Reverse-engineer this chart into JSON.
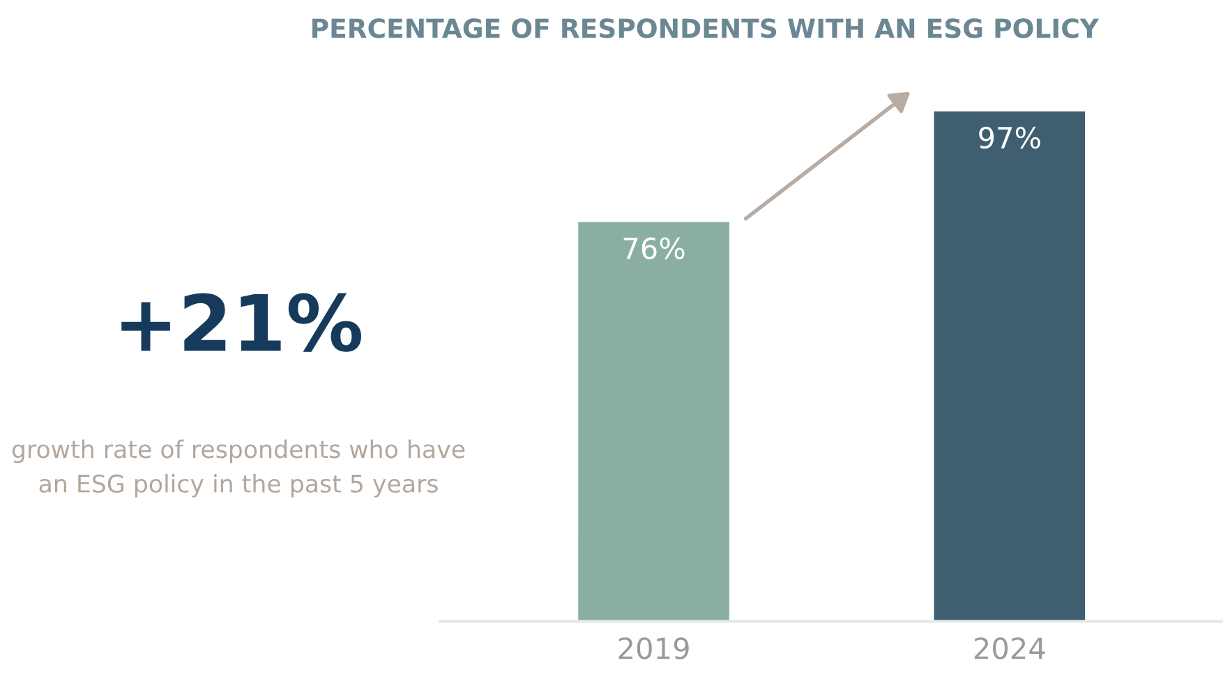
{
  "chart_data": {
    "type": "bar",
    "title": "PERCENTAGE OF RESPONDENTS WITH AN ESG POLICY",
    "categories": [
      "2019",
      "2024"
    ],
    "values": [
      76,
      97
    ],
    "colors": [
      "#8aafa0",
      "#3f5f71"
    ],
    "value_labels": [
      "76%",
      "97%"
    ],
    "tick_labels": "x",
    "grid": false,
    "annotations": [
      "+21%",
      "growth rate of respondents who have an ESG policy in the past 5 years"
    ]
  }
}
